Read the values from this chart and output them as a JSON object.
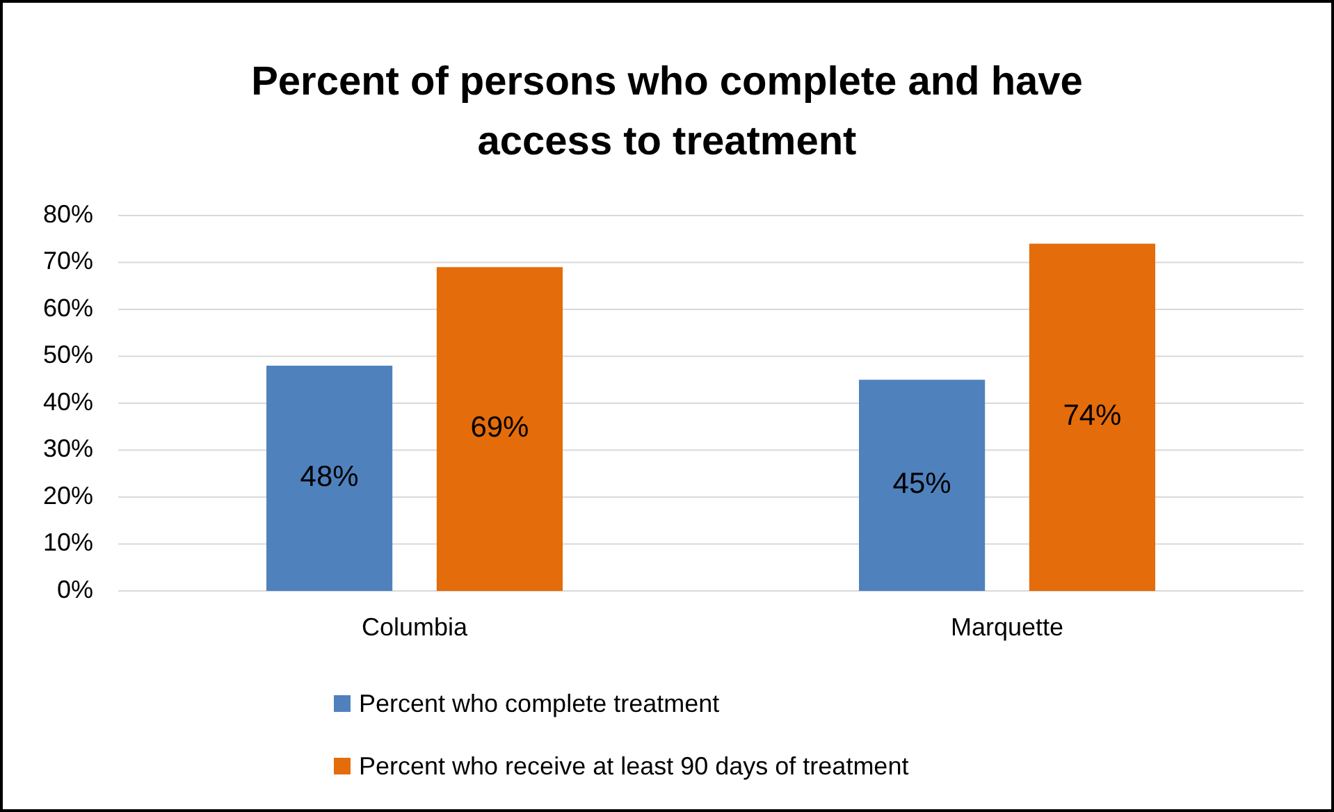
{
  "chart_data": {
    "type": "bar",
    "title": "Percent of persons who complete and have access to treatment",
    "categories": [
      "Columbia",
      "Marquette"
    ],
    "series": [
      {
        "name": "Percent who complete treatment",
        "color": "#4f81bd",
        "values": [
          48,
          45
        ],
        "value_labels": [
          "48%",
          "45%"
        ]
      },
      {
        "name": "Percent who receive at least 90 days of treatment",
        "color": "#e46c0a",
        "values": [
          69,
          74
        ],
        "value_labels": [
          "69%",
          "74%"
        ]
      }
    ],
    "ylim": [
      0,
      80
    ],
    "yticks": [
      {
        "value": 0,
        "label": "0%"
      },
      {
        "value": 10,
        "label": "10%"
      },
      {
        "value": 20,
        "label": "20%"
      },
      {
        "value": 30,
        "label": "30%"
      },
      {
        "value": 40,
        "label": "40%"
      },
      {
        "value": 50,
        "label": "50%"
      },
      {
        "value": 60,
        "label": "60%"
      },
      {
        "value": 70,
        "label": "70%"
      },
      {
        "value": 80,
        "label": "80%"
      }
    ],
    "grid": "y",
    "legend": "bottom"
  }
}
